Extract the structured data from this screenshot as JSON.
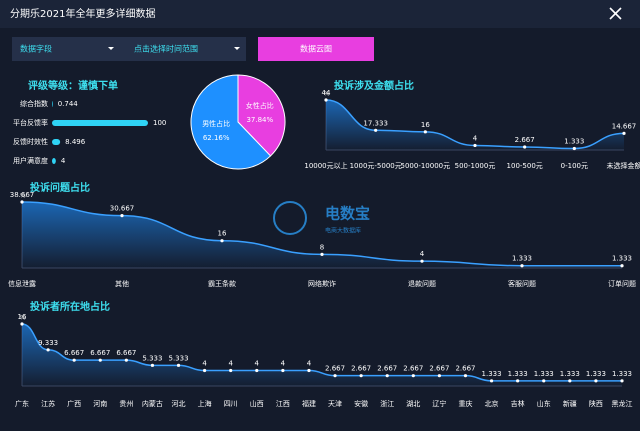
{
  "header": {
    "title": "分期乐2021年全年更多详细数据"
  },
  "controls": {
    "field_select": "数据字段",
    "time_select": "点击选择时间范围",
    "button": "数据云图"
  },
  "watermark": {
    "name": "电数宝",
    "subtitle": "电商大数据库"
  },
  "chart_data": [
    {
      "type": "bar",
      "title": "评级等级：谨慎下单",
      "categories": [
        "综合指数",
        "平台反馈率",
        "反馈时效性",
        "用户满意度"
      ],
      "values": [
        0.744,
        100,
        8.496,
        4
      ],
      "color": "#2fd3f5"
    },
    {
      "type": "pie",
      "categories": [
        "男性占比",
        "女性占比"
      ],
      "values": [
        62.16,
        37.84
      ],
      "value_labels": [
        "62.16%",
        "37.84%"
      ],
      "colors": [
        "#1e90ff",
        "#e83ee0"
      ]
    },
    {
      "type": "line",
      "title": "投诉涉及金额占比",
      "y_unit": "%",
      "categories": [
        "10000元以上",
        "1000元-5000元",
        "5000-10000元",
        "500-1000元",
        "100-500元",
        "0-100元",
        "未选择金额"
      ],
      "values": [
        44,
        17.333,
        16,
        4,
        2.667,
        1.333,
        14.667
      ],
      "color": "#3aa0ff"
    },
    {
      "type": "line",
      "title": "投诉问题占比",
      "y_unit": "%",
      "categories": [
        "信息泄露",
        "其他",
        "霸王条款",
        "网络欺诈",
        "退款问题",
        "客服问题",
        "订单问题"
      ],
      "values": [
        38.667,
        30.667,
        16,
        8,
        4,
        1.333,
        1.333
      ],
      "color": "#3aa0ff"
    },
    {
      "type": "line",
      "title": "投诉者所在地占比",
      "y_unit": "%",
      "categories": [
        "广东",
        "江苏",
        "广西",
        "河南",
        "贵州",
        "内蒙古",
        "河北",
        "上海",
        "四川",
        "山西",
        "江西",
        "福建",
        "天津",
        "安徽",
        "浙江",
        "湖北",
        "辽宁",
        "重庆",
        "北京",
        "吉林",
        "山东",
        "新疆",
        "陕西",
        "黑龙江"
      ],
      "values": [
        16,
        9.333,
        6.667,
        6.667,
        6.667,
        5.333,
        5.333,
        4,
        4,
        4,
        4,
        4,
        2.667,
        2.667,
        2.667,
        2.667,
        2.667,
        2.667,
        1.333,
        1.333,
        1.333,
        1.333,
        1.333,
        1.333
      ],
      "color": "#3aa0ff"
    }
  ]
}
